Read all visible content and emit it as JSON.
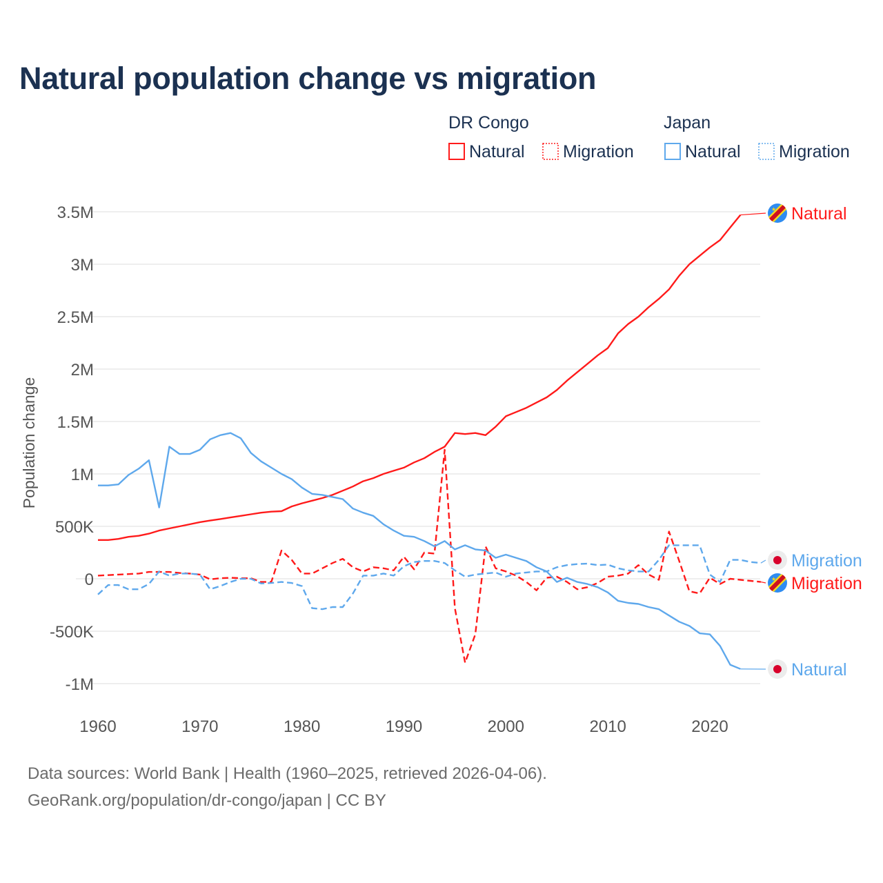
{
  "title": "Natural population change vs migration",
  "footer": {
    "line1": "Data sources: World Bank | Health (1960–2025, retrieved 2026-04-06).",
    "line2": "GeoRank.org/population/dr-congo/japan | CC BY"
  },
  "colors": {
    "drc": "#ff1a1a",
    "japan": "#5ea8ec",
    "title": "#1b3151"
  },
  "chart_data": {
    "type": "line",
    "title": "Natural population change vs migration",
    "ylabel": "Population change",
    "xlabel": "",
    "ylim": [
      -1000000,
      3500000
    ],
    "xlim": [
      1960,
      2025
    ],
    "yticks": [
      {
        "v": 3500000,
        "label": "3.5M"
      },
      {
        "v": 3000000,
        "label": "3M"
      },
      {
        "v": 2500000,
        "label": "2.5M"
      },
      {
        "v": 2000000,
        "label": "2M"
      },
      {
        "v": 1500000,
        "label": "1.5M"
      },
      {
        "v": 1000000,
        "label": "1M"
      },
      {
        "v": 500000,
        "label": "500K"
      },
      {
        "v": 0,
        "label": "0"
      },
      {
        "v": -500000,
        "label": "-500K"
      },
      {
        "v": -1000000,
        "label": "-1M"
      }
    ],
    "xticks": [
      {
        "v": 1960,
        "label": "1960"
      },
      {
        "v": 1970,
        "label": "1970"
      },
      {
        "v": 1980,
        "label": "1980"
      },
      {
        "v": 1990,
        "label": "1990"
      },
      {
        "v": 2000,
        "label": "2000"
      },
      {
        "v": 2010,
        "label": "2010"
      },
      {
        "v": 2020,
        "label": "2020"
      }
    ],
    "grid": true,
    "legend": {
      "placement": "top-right",
      "groups": [
        {
          "name": "DR Congo",
          "items": [
            "Natural",
            "Migration"
          ]
        },
        {
          "name": "Japan",
          "items": [
            "Natural",
            "Migration"
          ]
        }
      ]
    },
    "series": [
      {
        "name": "DR Congo Natural",
        "country": "DR Congo",
        "kind": "Natural",
        "label": "Natural",
        "start": 1960,
        "values": [
          0.37,
          0.37,
          0.38,
          0.4,
          0.41,
          0.43,
          0.46,
          0.48,
          0.5,
          0.52,
          0.54,
          0.555,
          0.57,
          0.585,
          0.6,
          0.615,
          0.63,
          0.64,
          0.645,
          0.69,
          0.72,
          0.745,
          0.77,
          0.8,
          0.84,
          0.88,
          0.93,
          0.96,
          1.0,
          1.03,
          1.06,
          1.11,
          1.15,
          1.21,
          1.26,
          1.39,
          1.38,
          1.39,
          1.37,
          1.45,
          1.55,
          1.59,
          1.63,
          1.68,
          1.73,
          1.8,
          1.89,
          1.97,
          2.05,
          2.13,
          2.2,
          2.34,
          2.43,
          2.5,
          2.59,
          2.67,
          2.76,
          2.89,
          3.0,
          3.08,
          3.16,
          3.23,
          3.35,
          3.47
        ]
      },
      {
        "name": "DR Congo Migration",
        "country": "DR Congo",
        "kind": "Migration",
        "label": "Migration",
        "start": 1960,
        "values": [
          0.03,
          0.035,
          0.04,
          0.045,
          0.05,
          0.065,
          0.065,
          0.065,
          0.055,
          0.05,
          0.04,
          -0.005,
          0.005,
          0.01,
          0.005,
          0.005,
          -0.03,
          -0.03,
          0.27,
          0.18,
          0.05,
          0.05,
          0.1,
          0.15,
          0.19,
          0.11,
          0.07,
          0.11,
          0.1,
          0.08,
          0.21,
          0.09,
          0.25,
          0.24,
          1.23,
          -0.28,
          -0.8,
          -0.53,
          0.31,
          0.1,
          0.07,
          0.03,
          -0.03,
          -0.11,
          0.01,
          0.02,
          -0.03,
          -0.1,
          -0.08,
          -0.04,
          0.02,
          0.03,
          0.05,
          0.13,
          0.04,
          -0.01,
          0.45,
          0.17,
          -0.12,
          -0.14,
          0.01,
          -0.05,
          0.0,
          -0.01,
          -0.02,
          -0.03
        ]
      },
      {
        "name": "Japan Natural",
        "country": "Japan",
        "kind": "Natural",
        "label": "Natural",
        "start": 1960,
        "values": [
          0.89,
          0.89,
          0.9,
          0.99,
          1.05,
          1.13,
          0.68,
          1.26,
          1.19,
          1.19,
          1.23,
          1.33,
          1.37,
          1.39,
          1.34,
          1.2,
          1.12,
          1.06,
          1.0,
          0.95,
          0.87,
          0.81,
          0.8,
          0.78,
          0.76,
          0.67,
          0.63,
          0.6,
          0.52,
          0.46,
          0.41,
          0.4,
          0.36,
          0.31,
          0.36,
          0.28,
          0.32,
          0.28,
          0.27,
          0.2,
          0.23,
          0.2,
          0.17,
          0.11,
          0.07,
          -0.03,
          0.01,
          -0.03,
          -0.05,
          -0.08,
          -0.13,
          -0.21,
          -0.23,
          -0.24,
          -0.27,
          -0.29,
          -0.35,
          -0.41,
          -0.45,
          -0.52,
          -0.53,
          -0.64,
          -0.82,
          -0.86
        ]
      },
      {
        "name": "Japan Migration",
        "country": "Japan",
        "kind": "Migration",
        "label": "Migration",
        "start": 1960,
        "values": [
          -0.15,
          -0.06,
          -0.06,
          -0.1,
          -0.1,
          -0.05,
          0.07,
          0.03,
          0.05,
          0.05,
          0.04,
          -0.1,
          -0.07,
          -0.03,
          0.0,
          0.0,
          -0.045,
          -0.04,
          -0.03,
          -0.04,
          -0.07,
          -0.28,
          -0.29,
          -0.27,
          -0.27,
          -0.14,
          0.03,
          0.03,
          0.05,
          0.03,
          0.12,
          0.16,
          0.17,
          0.17,
          0.15,
          0.08,
          0.02,
          0.04,
          0.05,
          0.06,
          0.02,
          0.05,
          0.06,
          0.07,
          0.07,
          0.11,
          0.13,
          0.14,
          0.145,
          0.13,
          0.135,
          0.1,
          0.08,
          0.07,
          0.07,
          0.18,
          0.32,
          0.32,
          0.32,
          0.32,
          0.04,
          -0.03,
          0.18,
          0.18,
          0.16,
          0.15
        ]
      }
    ],
    "units_note": "values in millions"
  }
}
